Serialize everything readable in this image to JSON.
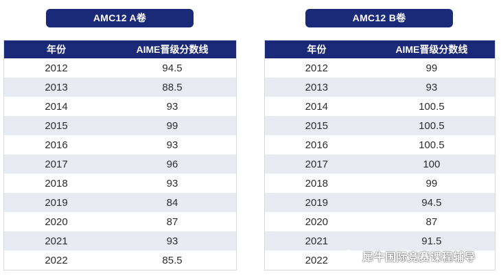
{
  "colors": {
    "header_navy": "#1b2a78",
    "stripe": "#e9ebf2",
    "text": "#2c2c2c"
  },
  "panel_a": {
    "title": "AMC12 A卷",
    "headers": {
      "year": "年份",
      "score": "AIME晋级分数线"
    },
    "rows": [
      {
        "year": "2012",
        "score": "94.5"
      },
      {
        "year": "2013",
        "score": "88.5"
      },
      {
        "year": "2014",
        "score": "93"
      },
      {
        "year": "2015",
        "score": "99"
      },
      {
        "year": "2016",
        "score": "93"
      },
      {
        "year": "2017",
        "score": "96"
      },
      {
        "year": "2018",
        "score": "93"
      },
      {
        "year": "2019",
        "score": "84"
      },
      {
        "year": "2020",
        "score": "87"
      },
      {
        "year": "2021",
        "score": "93"
      },
      {
        "year": "2022",
        "score": "85.5"
      }
    ]
  },
  "panel_b": {
    "title": "AMC12 B卷",
    "headers": {
      "year": "年份",
      "score": "AIME晋级分数线"
    },
    "rows": [
      {
        "year": "2012",
        "score": "99"
      },
      {
        "year": "2013",
        "score": "93"
      },
      {
        "year": "2014",
        "score": "100.5"
      },
      {
        "year": "2015",
        "score": "100.5"
      },
      {
        "year": "2016",
        "score": "100.5"
      },
      {
        "year": "2017",
        "score": "100"
      },
      {
        "year": "2018",
        "score": "99"
      },
      {
        "year": "2019",
        "score": "94.5"
      },
      {
        "year": "2020",
        "score": "87"
      },
      {
        "year": "2021",
        "score": "91.5"
      },
      {
        "year": "2022",
        "score": ""
      }
    ]
  },
  "watermark": {
    "icon": "wechat-icon",
    "text": "犀牛国际竞赛课程辅导"
  }
}
